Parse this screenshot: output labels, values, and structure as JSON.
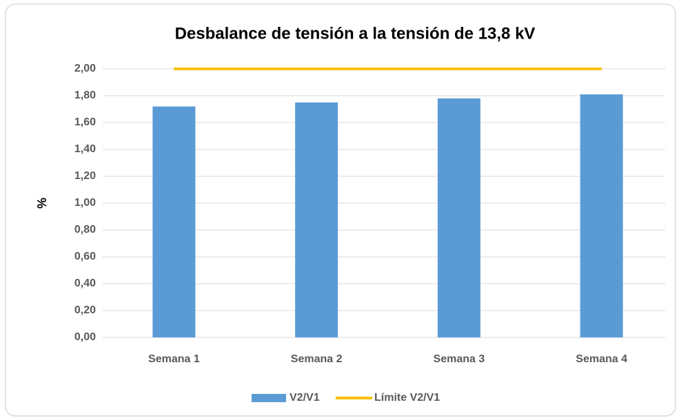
{
  "chart_data": {
    "type": "bar",
    "title": "Desbalance de tensión a la tensión de 13,8 kV",
    "ylabel": "%",
    "categories": [
      "Semana 1",
      "Semana 2",
      "Semana 3",
      "Semana 4"
    ],
    "series": [
      {
        "name": "V2/V1",
        "type": "bar",
        "color": "#5b9bd5",
        "values": [
          1.72,
          1.75,
          1.78,
          1.81
        ]
      },
      {
        "name": "Límite V2/V1",
        "type": "line",
        "color": "#ffc000",
        "values": [
          2.0,
          2.0,
          2.0,
          2.0
        ]
      }
    ],
    "ylim": [
      0,
      2.0
    ],
    "yticks": [
      {
        "value": 0,
        "label": "0,00"
      },
      {
        "value": 0.2,
        "label": "0,20"
      },
      {
        "value": 0.4,
        "label": "0,40"
      },
      {
        "value": 0.6,
        "label": "0,60"
      },
      {
        "value": 0.8,
        "label": "0,80"
      },
      {
        "value": 1.0,
        "label": "1,00"
      },
      {
        "value": 1.2,
        "label": "1,20"
      },
      {
        "value": 1.4,
        "label": "1,40"
      },
      {
        "value": 1.6,
        "label": "1,60"
      },
      {
        "value": 1.8,
        "label": "1,80"
      },
      {
        "value": 2.0,
        "label": "2,00"
      }
    ],
    "grid": true,
    "legend": "bottom"
  }
}
